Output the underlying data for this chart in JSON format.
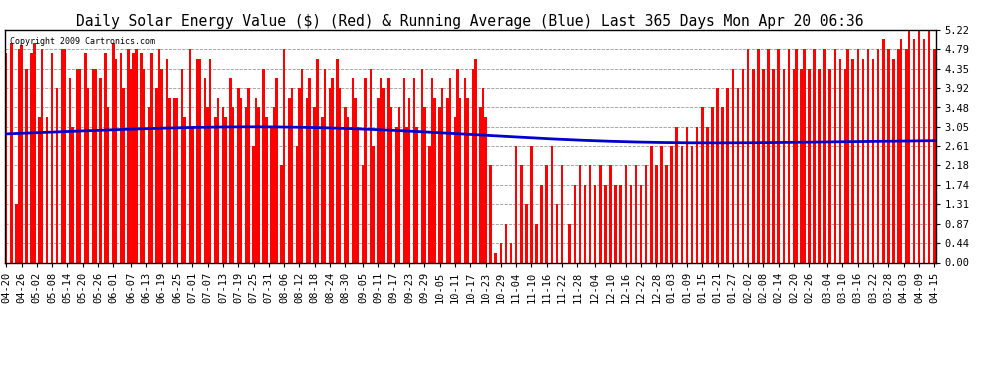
{
  "title": "Daily Solar Energy Value ($) (Red) & Running Average (Blue) Last 365 Days Mon Apr 20 06:36",
  "copyright": "Copyright 2009 Cartronics.com",
  "yticks": [
    0.0,
    0.44,
    0.87,
    1.31,
    1.74,
    2.18,
    2.61,
    3.05,
    3.48,
    3.92,
    4.35,
    4.79,
    5.22
  ],
  "ymax": 5.22,
  "bar_color": "#ff0000",
  "avg_color": "#0000cc",
  "bg_color": "#ffffff",
  "plot_bg_color": "#ffffff",
  "grid_color": "#999999",
  "title_fontsize": 10.5,
  "tick_fontsize": 7.5,
  "x_labels": [
    "04-20",
    "04-26",
    "05-02",
    "05-08",
    "05-14",
    "05-20",
    "05-26",
    "06-01",
    "06-07",
    "06-13",
    "06-19",
    "06-25",
    "07-01",
    "07-07",
    "07-13",
    "07-19",
    "07-25",
    "07-31",
    "08-06",
    "08-12",
    "08-18",
    "08-24",
    "08-30",
    "09-05",
    "09-11",
    "09-17",
    "09-23",
    "09-29",
    "10-05",
    "10-11",
    "10-17",
    "10-23",
    "10-29",
    "11-04",
    "11-10",
    "11-16",
    "11-22",
    "11-28",
    "12-04",
    "12-10",
    "12-16",
    "12-22",
    "12-28",
    "01-03",
    "01-09",
    "01-15",
    "01-21",
    "01-27",
    "02-02",
    "02-08",
    "02-14",
    "02-20",
    "02-26",
    "03-04",
    "03-10",
    "03-16",
    "03-22",
    "03-28",
    "04-03",
    "04-09",
    "04-15"
  ],
  "daily_values": [
    4.71,
    0.0,
    4.93,
    0.0,
    1.31,
    4.79,
    4.88,
    0.0,
    4.35,
    0.0,
    4.71,
    4.93,
    0.0,
    3.27,
    4.79,
    0.0,
    3.27,
    0.0,
    4.71,
    0.0,
    3.92,
    0.0,
    4.79,
    4.79,
    0.0,
    4.14,
    3.05,
    0.0,
    4.35,
    4.35,
    0.0,
    4.71,
    3.92,
    0.0,
    4.35,
    4.35,
    0.0,
    4.14,
    0.0,
    4.71,
    3.49,
    0.0,
    4.93,
    4.57,
    0.0,
    4.71,
    3.92,
    0.0,
    4.79,
    4.35,
    4.71,
    4.79,
    0.0,
    4.71,
    4.35,
    0.0,
    3.49,
    4.71,
    0.0,
    3.92,
    4.79,
    4.35,
    0.0,
    4.57,
    3.7,
    0.0,
    3.7,
    3.7,
    0.0,
    4.35,
    3.27,
    0.0,
    4.79,
    3.05,
    0.0,
    4.57,
    4.57,
    0.0,
    4.14,
    3.49,
    4.57,
    0.0,
    3.27,
    3.7,
    0.0,
    3.49,
    3.27,
    0.0,
    4.14,
    3.49,
    0.0,
    3.92,
    3.7,
    0.0,
    3.49,
    3.92,
    0.0,
    2.61,
    3.7,
    3.49,
    0.0,
    4.35,
    3.27,
    0.0,
    3.05,
    3.49,
    4.14,
    0.0,
    2.18,
    4.79,
    0.0,
    3.7,
    3.92,
    0.0,
    2.61,
    3.92,
    4.35,
    0.0,
    3.7,
    4.14,
    0.0,
    3.49,
    4.57,
    0.0,
    3.27,
    4.35,
    0.0,
    3.92,
    4.14,
    0.0,
    4.57,
    3.92,
    0.0,
    3.49,
    3.27,
    0.0,
    4.14,
    3.7,
    3.05,
    0.0,
    2.18,
    4.14,
    0.0,
    4.35,
    2.61,
    0.0,
    3.7,
    4.14,
    3.92,
    0.0,
    4.14,
    3.49,
    0.0,
    3.05,
    3.49,
    0.0,
    4.14,
    3.05,
    3.7,
    0.0,
    4.14,
    3.05,
    0.0,
    4.35,
    3.49,
    0.0,
    2.61,
    4.14,
    3.7,
    0.0,
    3.49,
    3.92,
    0.0,
    3.7,
    4.14,
    0.0,
    3.27,
    4.35,
    3.7,
    0.0,
    4.14,
    3.7,
    0.0,
    4.35,
    4.57,
    0.0,
    3.49,
    3.92,
    3.27,
    0.0,
    2.18,
    0.0,
    0.22,
    0.0,
    0.44,
    0.0,
    0.87,
    0.0,
    0.44,
    0.0,
    2.61,
    0.0,
    2.18,
    0.0,
    1.31,
    0.0,
    2.61,
    0.0,
    0.87,
    0.0,
    1.74,
    0.0,
    2.18,
    0.0,
    2.61,
    0.0,
    1.31,
    0.0,
    2.18,
    0.0,
    0.0,
    0.87,
    0.0,
    1.74,
    0.0,
    2.18,
    0.0,
    1.74,
    0.0,
    2.18,
    0.0,
    1.74,
    0.0,
    2.18,
    0.0,
    1.74,
    0.0,
    2.18,
    0.0,
    1.74,
    0.0,
    1.74,
    0.0,
    2.18,
    0.0,
    1.74,
    0.0,
    2.18,
    0.0,
    1.74,
    0.0,
    2.18,
    0.0,
    2.61,
    0.0,
    2.18,
    0.0,
    2.61,
    0.0,
    2.18,
    0.0,
    2.61,
    0.0,
    3.05,
    0.0,
    2.61,
    0.0,
    3.05,
    0.0,
    2.61,
    0.0,
    3.05,
    0.0,
    3.49,
    0.0,
    3.05,
    0.0,
    3.49,
    0.0,
    3.92,
    0.0,
    3.49,
    0.0,
    3.92,
    0.0,
    4.35,
    0.0,
    3.92,
    0.0,
    4.35,
    0.0,
    4.79,
    0.0,
    4.35,
    0.0,
    4.79,
    0.0,
    4.35,
    0.0,
    4.79,
    0.0,
    4.35,
    0.0,
    4.79,
    0.0,
    4.35,
    0.0,
    4.79,
    0.0,
    4.35,
    4.79,
    0.0,
    4.35,
    4.79,
    0.0,
    4.35,
    0.0,
    4.79,
    0.0,
    4.35,
    0.0,
    4.79,
    0.0,
    4.35,
    0.0,
    4.79,
    0.0,
    4.57,
    0.0,
    4.35,
    4.79,
    0.0,
    4.57,
    0.0,
    4.79,
    0.0,
    4.57,
    0.0,
    4.79,
    0.0,
    4.57,
    0.0,
    4.79,
    0.0,
    5.01,
    0.0,
    4.79,
    0.0,
    4.57,
    0.0,
    4.79,
    5.01,
    0.0,
    4.79,
    5.22,
    0.0,
    5.01,
    0.0,
    5.22,
    0.0,
    5.01,
    0.0,
    5.22,
    0.0,
    4.79
  ]
}
